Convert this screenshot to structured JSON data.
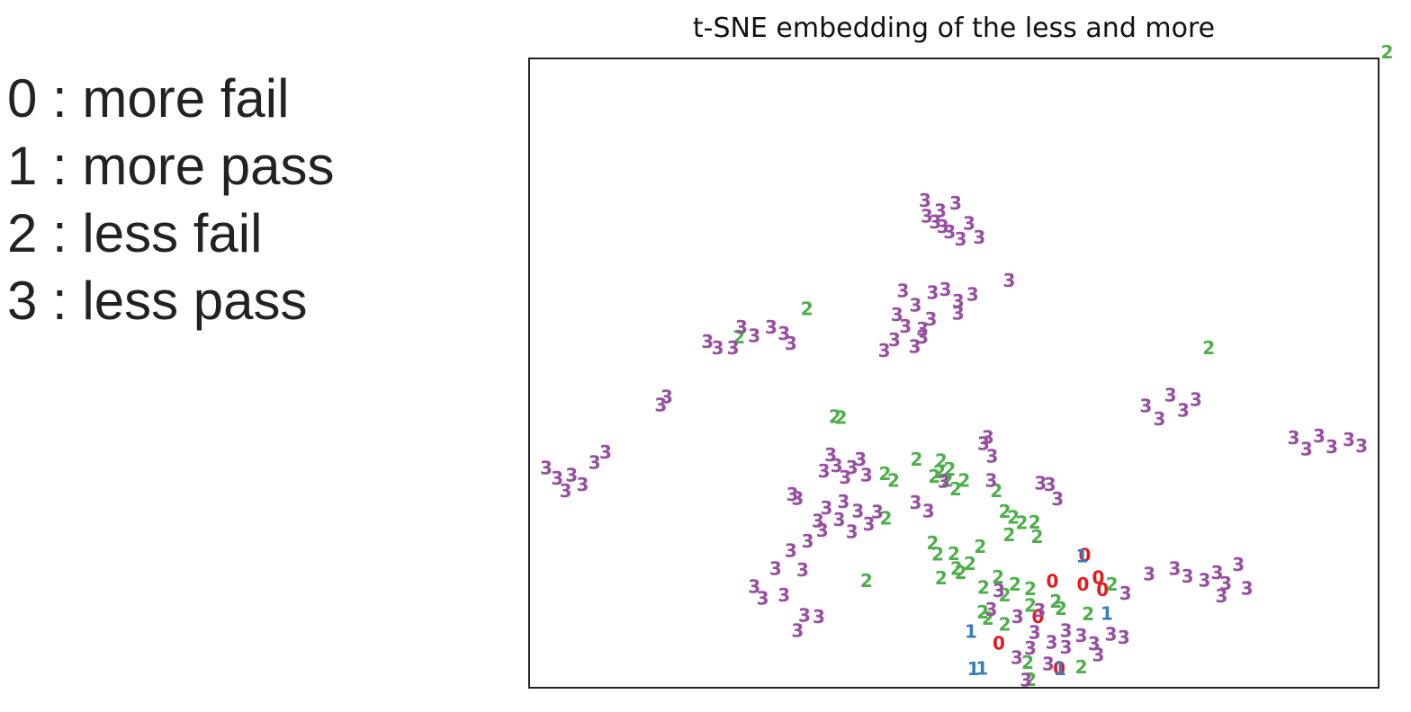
{
  "legend": {
    "items": [
      {
        "code": "0",
        "sep": " : ",
        "label": "more fail"
      },
      {
        "code": "1",
        "sep": " : ",
        "label": "more pass"
      },
      {
        "code": "2",
        "sep": " : ",
        "label": "less fail"
      },
      {
        "code": "3",
        "sep": " : ",
        "label": "less pass"
      }
    ]
  },
  "chart_data": {
    "type": "scatter",
    "title": "t-SNE embedding of the less and more",
    "xlabel": "",
    "ylabel": "",
    "xlim": [
      0,
      1
    ],
    "ylim": [
      0,
      1
    ],
    "grid": false,
    "markers": "class digit drawn as text",
    "series": [
      {
        "class": "0",
        "color": "#e41a1c",
        "points": [
          [
            0.654,
            0.211
          ],
          [
            0.67,
            0.175
          ],
          [
            0.616,
            0.169
          ],
          [
            0.652,
            0.164
          ],
          [
            0.675,
            0.156
          ],
          [
            0.599,
            0.113
          ],
          [
            0.553,
            0.071
          ],
          [
            0.624,
            0.031
          ]
        ]
      },
      {
        "class": "1",
        "color": "#377eb8",
        "points": [
          [
            0.651,
            0.209
          ],
          [
            0.52,
            0.089
          ],
          [
            0.523,
            0.03
          ],
          [
            0.533,
            0.031
          ],
          [
            0.625,
            0.03
          ],
          [
            0.68,
            0.118
          ]
        ]
      },
      {
        "class": "2",
        "color": "#4daf4a",
        "points": [
          [
            1.01,
            1.01
          ],
          [
            0.8,
            0.54
          ],
          [
            0.36,
            0.431
          ],
          [
            0.367,
            0.429
          ],
          [
            0.419,
            0.34
          ],
          [
            0.429,
            0.329
          ],
          [
            0.456,
            0.363
          ],
          [
            0.485,
            0.361
          ],
          [
            0.483,
            0.343
          ],
          [
            0.477,
            0.336
          ],
          [
            0.495,
            0.347
          ],
          [
            0.492,
            0.329
          ],
          [
            0.512,
            0.329
          ],
          [
            0.502,
            0.316
          ],
          [
            0.55,
            0.313
          ],
          [
            0.56,
            0.28
          ],
          [
            0.57,
            0.271
          ],
          [
            0.58,
            0.262
          ],
          [
            0.565,
            0.243
          ],
          [
            0.595,
            0.263
          ],
          [
            0.598,
            0.24
          ],
          [
            0.42,
            0.269
          ],
          [
            0.475,
            0.23
          ],
          [
            0.481,
            0.212
          ],
          [
            0.5,
            0.213
          ],
          [
            0.503,
            0.189
          ],
          [
            0.519,
            0.197
          ],
          [
            0.508,
            0.183
          ],
          [
            0.531,
            0.224
          ],
          [
            0.485,
            0.174
          ],
          [
            0.552,
            0.176
          ],
          [
            0.397,
            0.17
          ],
          [
            0.535,
            0.159
          ],
          [
            0.56,
            0.147
          ],
          [
            0.572,
            0.164
          ],
          [
            0.59,
            0.157
          ],
          [
            0.59,
            0.131
          ],
          [
            0.62,
            0.137
          ],
          [
            0.626,
            0.126
          ],
          [
            0.658,
            0.117
          ],
          [
            0.686,
            0.164
          ],
          [
            0.534,
            0.12
          ],
          [
            0.56,
            0.101
          ],
          [
            0.54,
            0.11
          ],
          [
            0.587,
            0.04
          ],
          [
            0.65,
            0.033
          ],
          [
            0.59,
            0.013
          ],
          [
            0.247,
            0.557
          ],
          [
            0.327,
            0.602
          ]
        ]
      },
      {
        "class": "3",
        "color": "#984ea3",
        "points": [
          [
            0.466,
            0.774
          ],
          [
            0.484,
            0.758
          ],
          [
            0.502,
            0.77
          ],
          [
            0.478,
            0.74
          ],
          [
            0.495,
            0.724
          ],
          [
            0.518,
            0.738
          ],
          [
            0.53,
            0.716
          ],
          [
            0.508,
            0.713
          ],
          [
            0.468,
            0.749
          ],
          [
            0.487,
            0.733
          ],
          [
            0.44,
            0.631
          ],
          [
            0.455,
            0.608
          ],
          [
            0.475,
            0.628
          ],
          [
            0.49,
            0.633
          ],
          [
            0.505,
            0.614
          ],
          [
            0.522,
            0.625
          ],
          [
            0.565,
            0.647
          ],
          [
            0.433,
            0.593
          ],
          [
            0.443,
            0.574
          ],
          [
            0.463,
            0.57
          ],
          [
            0.473,
            0.586
          ],
          [
            0.463,
            0.557
          ],
          [
            0.418,
            0.536
          ],
          [
            0.43,
            0.553
          ],
          [
            0.454,
            0.542
          ],
          [
            0.505,
            0.595
          ],
          [
            0.25,
            0.573
          ],
          [
            0.265,
            0.559
          ],
          [
            0.285,
            0.573
          ],
          [
            0.3,
            0.563
          ],
          [
            0.308,
            0.547
          ],
          [
            0.21,
            0.55
          ],
          [
            0.222,
            0.54
          ],
          [
            0.24,
            0.54
          ],
          [
            0.155,
            0.449
          ],
          [
            0.162,
            0.462
          ],
          [
            0.02,
            0.349
          ],
          [
            0.033,
            0.333
          ],
          [
            0.05,
            0.338
          ],
          [
            0.063,
            0.323
          ],
          [
            0.043,
            0.313
          ],
          [
            0.077,
            0.358
          ],
          [
            0.09,
            0.374
          ],
          [
            0.355,
            0.37
          ],
          [
            0.362,
            0.353
          ],
          [
            0.38,
            0.35
          ],
          [
            0.39,
            0.363
          ],
          [
            0.372,
            0.334
          ],
          [
            0.347,
            0.344
          ],
          [
            0.397,
            0.338
          ],
          [
            0.31,
            0.307
          ],
          [
            0.316,
            0.301
          ],
          [
            0.35,
            0.286
          ],
          [
            0.37,
            0.296
          ],
          [
            0.387,
            0.281
          ],
          [
            0.345,
            0.25
          ],
          [
            0.34,
            0.265
          ],
          [
            0.365,
            0.267
          ],
          [
            0.38,
            0.248
          ],
          [
            0.4,
            0.26
          ],
          [
            0.41,
            0.279
          ],
          [
            0.308,
            0.218
          ],
          [
            0.328,
            0.233
          ],
          [
            0.322,
            0.187
          ],
          [
            0.29,
            0.189
          ],
          [
            0.265,
            0.161
          ],
          [
            0.275,
            0.142
          ],
          [
            0.3,
            0.147
          ],
          [
            0.324,
            0.115
          ],
          [
            0.535,
            0.388
          ],
          [
            0.545,
            0.368
          ],
          [
            0.54,
            0.398
          ],
          [
            0.455,
            0.294
          ],
          [
            0.47,
            0.281
          ],
          [
            0.488,
            0.328
          ],
          [
            0.544,
            0.329
          ],
          [
            0.613,
            0.323
          ],
          [
            0.622,
            0.3
          ],
          [
            0.602,
            0.325
          ],
          [
            0.755,
            0.465
          ],
          [
            0.77,
            0.441
          ],
          [
            0.785,
            0.458
          ],
          [
            0.726,
            0.448
          ],
          [
            0.742,
            0.427
          ],
          [
            0.9,
            0.397
          ],
          [
            0.915,
            0.379
          ],
          [
            0.945,
            0.383
          ],
          [
            0.965,
            0.394
          ],
          [
            0.98,
            0.384
          ],
          [
            0.93,
            0.4
          ],
          [
            0.775,
            0.177
          ],
          [
            0.76,
            0.189
          ],
          [
            0.795,
            0.171
          ],
          [
            0.81,
            0.183
          ],
          [
            0.82,
            0.166
          ],
          [
            0.835,
            0.196
          ],
          [
            0.845,
            0.158
          ],
          [
            0.815,
            0.146
          ],
          [
            0.702,
            0.15
          ],
          [
            0.73,
            0.181
          ],
          [
            0.575,
            0.113
          ],
          [
            0.595,
            0.088
          ],
          [
            0.615,
            0.072
          ],
          [
            0.632,
            0.064
          ],
          [
            0.65,
            0.083
          ],
          [
            0.632,
            0.091
          ],
          [
            0.665,
            0.07
          ],
          [
            0.67,
            0.052
          ],
          [
            0.685,
            0.085
          ],
          [
            0.7,
            0.08
          ],
          [
            0.553,
            0.154
          ],
          [
            0.544,
            0.124
          ],
          [
            0.601,
            0.123
          ],
          [
            0.574,
            0.048
          ],
          [
            0.59,
            0.063
          ],
          [
            0.611,
            0.038
          ],
          [
            0.585,
            0.012
          ],
          [
            0.341,
            0.113
          ],
          [
            0.316,
            0.091
          ]
        ]
      }
    ]
  }
}
